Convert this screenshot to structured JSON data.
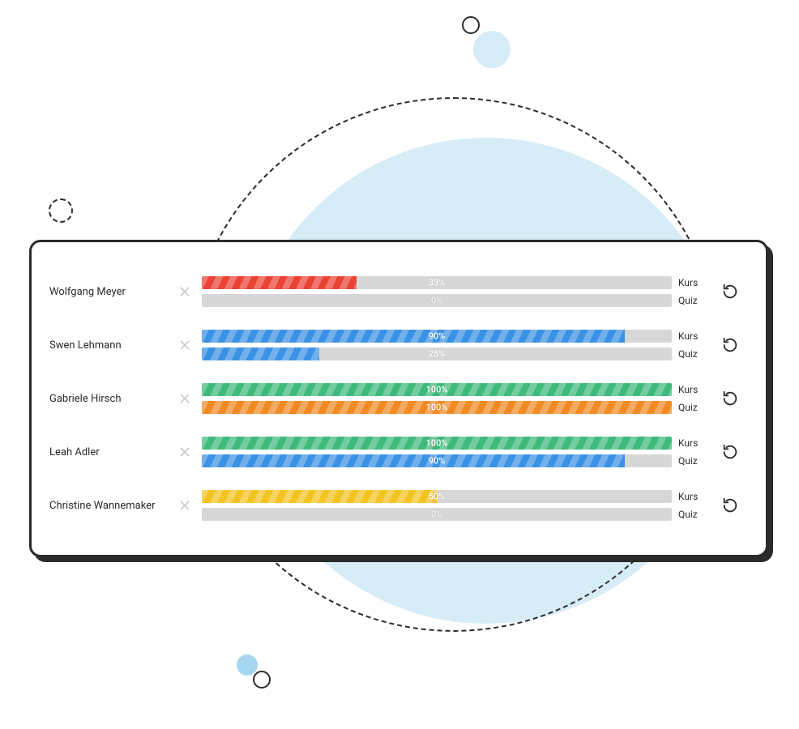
{
  "labels": {
    "course": "Kurs",
    "quiz": "Quiz"
  },
  "bar_track_color": "#d7d7d7",
  "colors": {
    "red": "#ea4335",
    "blue": "#3b92e4",
    "green": "#3fba7b",
    "orange": "#f08a24",
    "yellow": "#f3c321"
  },
  "students": [
    {
      "name": "Wolfgang Meyer",
      "course": {
        "pct": 33,
        "label": "33%",
        "color": "red"
      },
      "quiz": {
        "pct": 0,
        "label": "0%",
        "color": null
      }
    },
    {
      "name": "Swen Lehmann",
      "course": {
        "pct": 90,
        "label": "90%",
        "color": "blue"
      },
      "quiz": {
        "pct": 25,
        "label": "25%",
        "color": "blue"
      }
    },
    {
      "name": "Gabriele Hirsch",
      "course": {
        "pct": 100,
        "label": "100%",
        "color": "green"
      },
      "quiz": {
        "pct": 100,
        "label": "100%",
        "color": "orange"
      }
    },
    {
      "name": "Leah Adler",
      "course": {
        "pct": 100,
        "label": "100%",
        "color": "green"
      },
      "quiz": {
        "pct": 90,
        "label": "90%",
        "color": "blue"
      }
    },
    {
      "name": "Christine Wannemaker",
      "course": {
        "pct": 50,
        "label": "50%",
        "color": "yellow"
      },
      "quiz": {
        "pct": 0,
        "label": "0%",
        "color": null
      }
    }
  ]
}
